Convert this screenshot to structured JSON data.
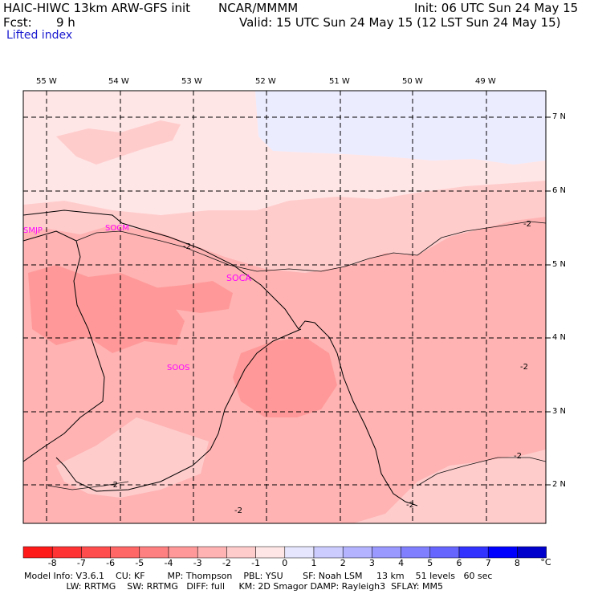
{
  "header": {
    "model_title": "HAIC-HIWC 13km ARW-GFS init",
    "org": "NCAR/MMMM",
    "init": "Init: 06 UTC Sun 24 May 15",
    "fcst_label": "Fcst:",
    "fcst_value": "9 h",
    "valid": "Valid: 15 UTC Sun 24 May 15 (12 LST Sun 24 May 15)",
    "field": "Lifted index"
  },
  "map": {
    "lon_labels": [
      "55 W",
      "54 W",
      "53 W",
      "52 W",
      "51 W",
      "50 W",
      "49 W"
    ],
    "lat_labels": [
      "7 N",
      "6 N",
      "5 N",
      "4 N",
      "3 N",
      "2 N"
    ],
    "stations": [
      "SMJP",
      "SOCM",
      "SOCA",
      "SOOS"
    ],
    "contour_labels": [
      "-2",
      "-2",
      "-2",
      "-2",
      "-2",
      "-2",
      "-2"
    ]
  },
  "colorbar": {
    "ticks": [
      "-8",
      "-7",
      "-6",
      "-5",
      "-4",
      "-3",
      "-2",
      "-1",
      "0",
      "1",
      "2",
      "3",
      "4",
      "5",
      "6",
      "7",
      "8"
    ],
    "unit": "°C",
    "colors": [
      "#ff1a1a",
      "#ff3333",
      "#ff4d4d",
      "#ff6666",
      "#ff8080",
      "#ff9999",
      "#ffb3b3",
      "#ffcccc",
      "#ffe6e6",
      "#e6e6ff",
      "#ccccff",
      "#b3b3ff",
      "#9999ff",
      "#8080ff",
      "#6666ff",
      "#3333ff",
      "#0000ff",
      "#0000cc"
    ]
  },
  "footer": {
    "line1": "Model Info: V3.6.1    CU: KF        MP: Thompson    PBL: YSU       SF: Noah LSM     13 km    51 levels   60 sec",
    "line2": "               LW: RRTMG    SW: RRTMG   DIFF: full     KM: 2D Smagor DAMP: Rayleigh3  SFLAY: MM5"
  }
}
